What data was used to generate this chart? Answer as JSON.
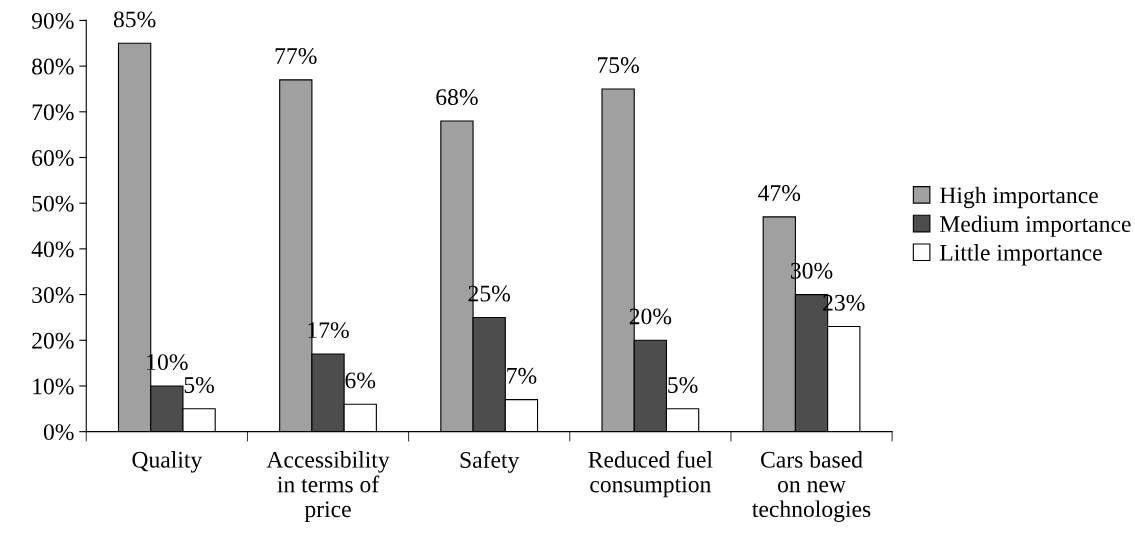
{
  "chart_data": {
    "type": "bar",
    "categories": [
      "Quality",
      "Accessibility\nin terms of\nprice",
      "Safety",
      "Reduced fuel\nconsumption",
      "Cars based\non new\ntechnologies"
    ],
    "series": [
      {
        "name": "High importance",
        "color": "#a0a0a0",
        "values": [
          85,
          77,
          68,
          75,
          47
        ],
        "value_labels": [
          "85%",
          "77%",
          "68%",
          "75%",
          "47%"
        ]
      },
      {
        "name": "Medium importance",
        "color": "#4d4d4d",
        "values": [
          10,
          17,
          25,
          20,
          30
        ],
        "value_labels": [
          "10%",
          "17%",
          "25%",
          "20%",
          "30%"
        ]
      },
      {
        "name": "Little importance",
        "color": "#ffffff",
        "values": [
          5,
          6,
          7,
          5,
          23
        ],
        "value_labels": [
          "5%",
          "6%",
          "7%",
          "5%",
          "23%"
        ]
      }
    ],
    "ylim": [
      0,
      90
    ],
    "yticks": [
      {
        "value": 0,
        "label": "0%"
      },
      {
        "value": 10,
        "label": "10%"
      },
      {
        "value": 20,
        "label": "20%"
      },
      {
        "value": 30,
        "label": "30%"
      },
      {
        "value": 40,
        "label": "40%"
      },
      {
        "value": 50,
        "label": "50%"
      },
      {
        "value": 60,
        "label": "60%"
      },
      {
        "value": 70,
        "label": "70%"
      },
      {
        "value": 80,
        "label": "80%"
      },
      {
        "value": 90,
        "label": "90%"
      }
    ],
    "grid": false,
    "legend": "right"
  }
}
